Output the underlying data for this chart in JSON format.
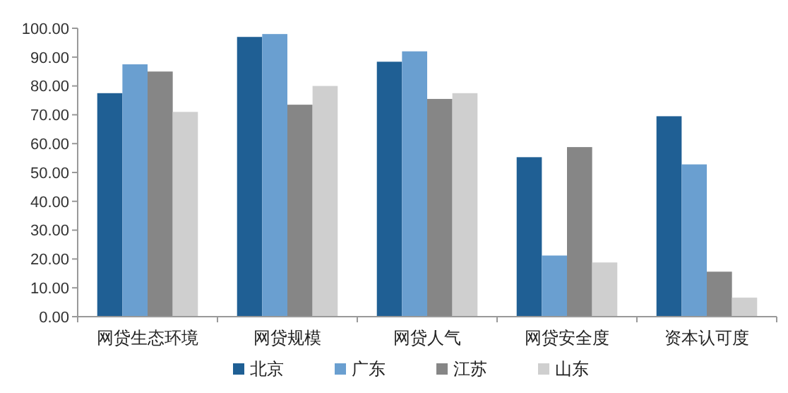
{
  "chart_data": {
    "type": "bar",
    "categories": [
      "网贷生态环境",
      "网贷规模",
      "网贷人气",
      "网贷安全度",
      "资本认可度"
    ],
    "series": [
      {
        "name": "北京",
        "color": "#1f5f94",
        "values": [
          77.5,
          97,
          88.4,
          55.3,
          69.5
        ]
      },
      {
        "name": "广东",
        "color": "#6a9fd0",
        "values": [
          87.5,
          98,
          92,
          21.2,
          52.8
        ]
      },
      {
        "name": "江苏",
        "color": "#868686",
        "values": [
          85,
          73.5,
          75.5,
          58.8,
          15.6
        ]
      },
      {
        "name": "山东",
        "color": "#cfcfcf",
        "values": [
          71,
          80,
          77.5,
          18.8,
          6.6
        ]
      }
    ],
    "ylim": [
      0,
      100
    ],
    "yticks": [
      {
        "value": 0,
        "label": "0.00"
      },
      {
        "value": 10,
        "label": "10.00"
      },
      {
        "value": 20,
        "label": "20.00"
      },
      {
        "value": 30,
        "label": "30.00"
      },
      {
        "value": 40,
        "label": "40.00"
      },
      {
        "value": 50,
        "label": "50.00"
      },
      {
        "value": 60,
        "label": "60.00"
      },
      {
        "value": 70,
        "label": "70.00"
      },
      {
        "value": 80,
        "label": "80.00"
      },
      {
        "value": 90,
        "label": "90.00"
      },
      {
        "value": 100,
        "label": "100.00"
      }
    ],
    "legend": "bottom",
    "grid": false
  }
}
